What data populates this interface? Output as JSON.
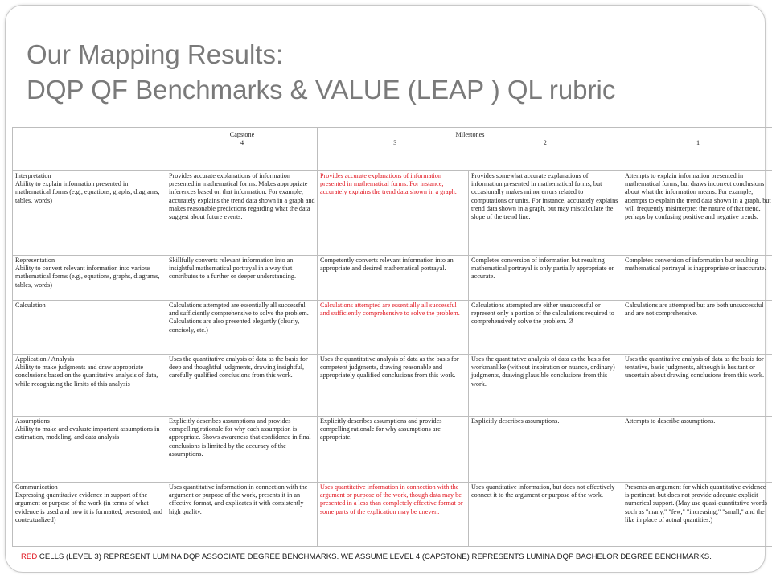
{
  "title": {
    "line1": "Our Mapping Results:",
    "line2": "DQP QF Benchmarks & VALUE (LEAP ) QL rubric"
  },
  "header": {
    "capstone_label": "Capstone",
    "capstone_num": "4",
    "milestones_label": "Milestones",
    "m3": "3",
    "m2": "2",
    "level1": "1"
  },
  "rows": [
    {
      "criterion": "Interpretation\nAbility to explain information presented in mathematical forms (e.g., equations, graphs, diagrams, tables, words)",
      "c4": "Provides accurate explanations of information presented in mathematical forms. Makes appropriate inferences based on that information. For example, accurately explains the trend data shown in a graph and makes reasonable predictions regarding what the data suggest about future events.",
      "c3": "Provides accurate explanations of information presented in mathematical forms. For instance, accurately explains the trend data shown in a graph.",
      "c2": "Provides somewhat accurate explanations of information presented in mathematical forms, but occasionally makes minor errors related to computations or units. For instance, accurately explains trend data shown in a graph, but may miscalculate the slope of the trend line.",
      "c1": "Attempts to explain information presented in mathematical forms, but draws incorrect conclusions about what the information means. For example, attempts to explain the trend data shown in a graph, but will frequently misinterpret the nature of that trend, perhaps by confusing positive and negative trends."
    },
    {
      "criterion": "Representation\nAbility to convert relevant information into various mathematical forms (e.g., equations, graphs, diagrams, tables, words)",
      "c4": "Skillfully converts relevant information into an insightful mathematical portrayal in a way that contributes to a further or deeper understanding.",
      "c3": "Competently converts relevant information into an appropriate and desired mathematical portrayal.",
      "c2": "Completes conversion of information but resulting mathematical portrayal is only partially appropriate or accurate.",
      "c1": "Completes conversion of information but resulting mathematical portrayal is inappropriate or inaccurate."
    },
    {
      "criterion": "Calculation",
      "c4": "Calculations attempted are essentially all successful and sufficiently comprehensive to solve the problem. Calculations are also presented elegantly (clearly, concisely, etc.)",
      "c3": "Calculations attempted are essentially all successful and sufficiently comprehensive to solve the problem.",
      "c2": "Calculations attempted are either unsuccessful or\nrepresent only a portion of the calculations required to comprehensively solve the problem. Ø",
      "c1": "Calculations are attempted but are both unsuccessful and are not comprehensive."
    },
    {
      "criterion": "Application / Analysis\nAbility to make judgments and draw appropriate conclusions based on the quantitative analysis of data, while recognizing the limits of this analysis",
      "c4": "Uses the quantitative analysis of data as the basis for deep and thoughtful judgments, drawing insightful, carefully qualified conclusions from this work.",
      "c3": "Uses the quantitative analysis of data as the basis for competent judgments, drawing reasonable and appropriately qualified conclusions from this work.",
      "c2": "Uses the quantitative analysis of data as the basis for workmanlike (without inspiration or nuance, ordinary) judgments, drawing plausible conclusions from this work.",
      "c1": "Uses the quantitative analysis of data as the basis for tentative, basic judgments, although is hesitant or uncertain about drawing conclusions from this work."
    },
    {
      "criterion": "Assumptions\nAbility to make and evaluate important assumptions in estimation, modeling, and data analysis",
      "c4": "Explicitly describes assumptions and provides compelling rationale for why each assumption is appropriate. Shows awareness that confidence in final conclusions is limited by the accuracy of the assumptions.",
      "c3": "Explicitly describes assumptions and provides compelling rationale for why assumptions are appropriate.",
      "c2": "Explicitly describes assumptions.",
      "c1": "Attempts to describe assumptions."
    },
    {
      "criterion": "Communication\nExpressing quantitative evidence in support of the argument or purpose of the work (in terms of what evidence is used and how it is formatted, presented, and contextualized)",
      "c4": "Uses quantitative information in connection with the argument or purpose of the work, presents it in an effective format, and explicates it with consistently high quality.",
      "c3": "Uses quantitative information in connection with the argument or purpose of the work, though data may be presented in a less than completely effective format or some parts of the explication may be uneven.",
      "c2": "Uses quantitative information, but does not effectively connect it to the argument or purpose of the work.",
      "c1": "Presents an argument for which quantitative evidence is pertinent, but does not provide adequate explicit numerical support. (May use quasi-quantitative words such as \"many,\" \"few,\" \"increasing,\" \"small,\" and the like in place of actual quantities.)"
    }
  ],
  "footer": {
    "red_word": "RED",
    "text": " CELLS (LEVEL 3) REPRESENT LUMINA DQP ASSOCIATE DEGREE BENCHMARKS. WE ASSUME LEVEL 4 (CAPSTONE) REPRESENTS LUMINA DQP BACHELOR DEGREE BENCHMARKS."
  },
  "colors": {
    "title": "#7a7a7a",
    "highlight_red": "#e0141e",
    "border": "#bdbdbd"
  }
}
